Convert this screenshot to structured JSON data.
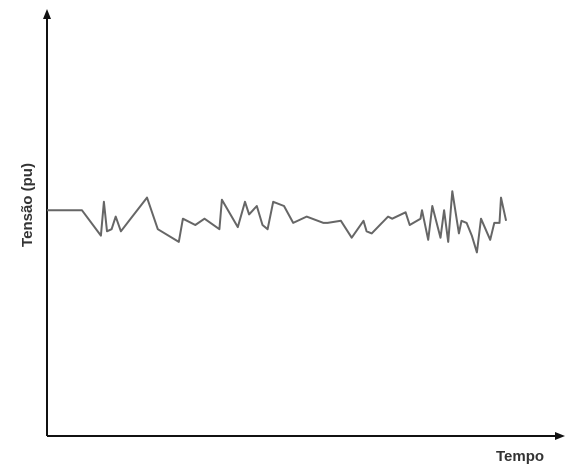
{
  "chart_data": {
    "type": "line",
    "title": "",
    "xlabel": "Tempo",
    "ylabel": "Tensão (pu)",
    "xlim": [
      0,
      100
    ],
    "ylim": [
      0,
      2
    ],
    "grid": false,
    "legend": "none",
    "colors": {
      "axis": "#111111",
      "series": "#666666",
      "label": "#333333"
    },
    "series": [
      {
        "x": [
          0,
          6.8,
          10.5,
          11.1,
          11.7,
          12.6,
          13.4,
          14.4,
          19.5,
          21.6,
          25.7,
          26.5,
          28.9,
          30.7,
          33.6,
          34.1,
          37.2,
          38.6,
          39.4,
          40.9,
          42.0,
          43.0,
          44.1,
          46.2,
          48.0,
          50.6,
          53.9,
          54.7,
          57.3,
          59.4,
          61.7,
          62.3,
          63.3,
          66.5,
          67.3,
          69.9,
          70.7,
          72.8,
          73.1,
          74.3,
          75.1,
          76.7,
          77.4,
          78.2,
          79.0,
          80.3,
          80.8,
          81.8,
          82.8,
          83.8,
          84.6,
          86.4,
          87.2,
          88.2,
          88.5,
          89.5
        ],
        "y": [
          1.07,
          1.07,
          0.95,
          1.11,
          0.97,
          0.98,
          1.04,
          0.97,
          1.13,
          0.98,
          0.92,
          1.03,
          1.0,
          1.03,
          0.98,
          1.12,
          0.99,
          1.11,
          1.05,
          1.09,
          1.0,
          0.98,
          1.11,
          1.09,
          1.01,
          1.04,
          1.01,
          1.01,
          1.02,
          0.94,
          1.02,
          0.97,
          0.96,
          1.04,
          1.03,
          1.06,
          1.0,
          1.03,
          1.07,
          0.93,
          1.09,
          0.94,
          1.07,
          0.92,
          1.16,
          0.96,
          1.02,
          1.01,
          0.95,
          0.87,
          1.03,
          0.93,
          1.01,
          1.01,
          1.13,
          1.02
        ]
      }
    ]
  }
}
